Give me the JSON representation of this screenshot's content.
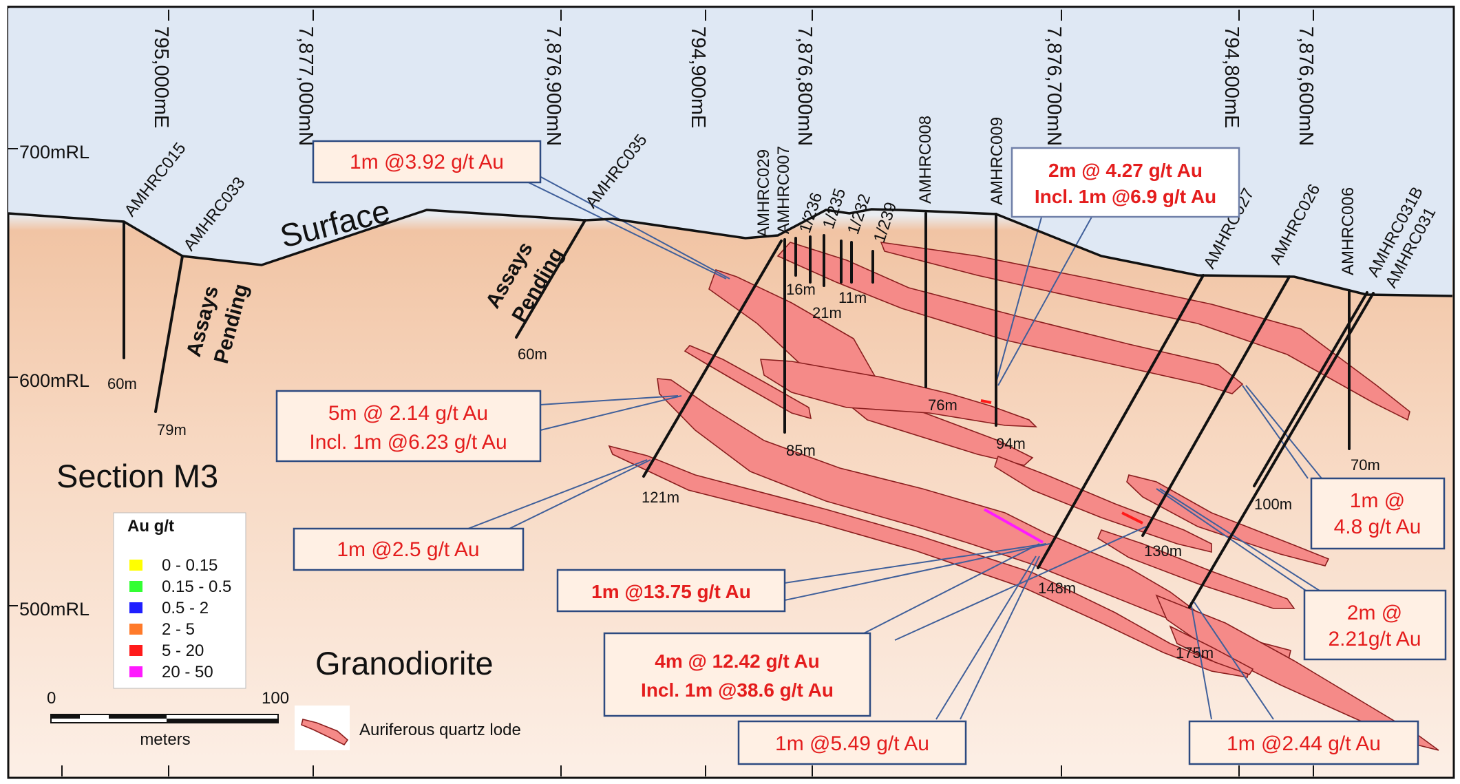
{
  "section_title": "Section M3",
  "rock_label": "Granodiorite",
  "surface_label": "Surface",
  "assays_pending": [
    "Assays",
    "Pending"
  ],
  "rl_labels": [
    "700mRL",
    "600mRL",
    "500mRL"
  ],
  "coord_labels": [
    "795,000mE",
    "7,877,000mN",
    "7,876,900mN",
    "794,900mE",
    "7,876,800mN",
    "7,876,700mN",
    "794,800mE",
    "7,876,600mN"
  ],
  "holes": [
    {
      "name": "AMHRC015",
      "depth": "60m"
    },
    {
      "name": "AMHRC033",
      "depth": "79m"
    },
    {
      "name": "AMHRC035",
      "depth": "60m"
    },
    {
      "name": "AMHRC029",
      "depth": "121m"
    },
    {
      "name": "AMHRC007",
      "depth": "85m"
    },
    {
      "name": "1/236",
      "depth": "16m"
    },
    {
      "name": "1/235",
      "depth": "21m"
    },
    {
      "name": "1/232",
      "depth": "11m"
    },
    {
      "name": "1/239",
      "depth": ""
    },
    {
      "name": "AMHRC008",
      "depth": "76m"
    },
    {
      "name": "AMHRC009",
      "depth": "94m"
    },
    {
      "name": "AMHRC027",
      "depth": "148m"
    },
    {
      "name": "AMHRC026",
      "depth": "130m"
    },
    {
      "name": "AMHRC006",
      "depth": "70m"
    },
    {
      "name": "AMHRC031B",
      "depth": "100m"
    },
    {
      "name": "AMHRC031",
      "depth": "175m"
    }
  ],
  "intercepts": {
    "i1": [
      "1m @3.92 g/t Au"
    ],
    "i2": [
      "2m @ 4.27 g/t Au",
      "Incl. 1m @6.9 g/t Au"
    ],
    "i3": [
      "5m @ 2.14 g/t Au",
      "Incl. 1m @6.23 g/t Au"
    ],
    "i4": [
      "1m @2.5 g/t Au"
    ],
    "i5": [
      "1m @13.75 g/t Au"
    ],
    "i6": [
      "4m @ 12.42 g/t Au",
      "Incl. 1m @38.6 g/t Au"
    ],
    "i7": [
      "1m @5.49 g/t Au"
    ],
    "i8": [
      "1m @",
      "4.8 g/t Au"
    ],
    "i9": [
      "2m @",
      "2.21g/t Au"
    ],
    "i10": [
      "1m @2.44 g/t Au"
    ]
  },
  "legend": {
    "title": "Au g/t",
    "items": [
      {
        "label": "0 - 0.15",
        "color": "#ffff00"
      },
      {
        "label": "0.15 - 0.5",
        "color": "#33ff33"
      },
      {
        "label": "0.5 - 2",
        "color": "#1f1fff"
      },
      {
        "label": "2 - 5",
        "color": "#ff7a2a"
      },
      {
        "label": "5 - 20",
        "color": "#ff1a1a"
      },
      {
        "label": "20 - 50",
        "color": "#ff1aff"
      }
    ]
  },
  "scale": {
    "start": "0",
    "end": "100",
    "unit": "meters"
  },
  "lode_legend": "Auriferous quartz lode"
}
